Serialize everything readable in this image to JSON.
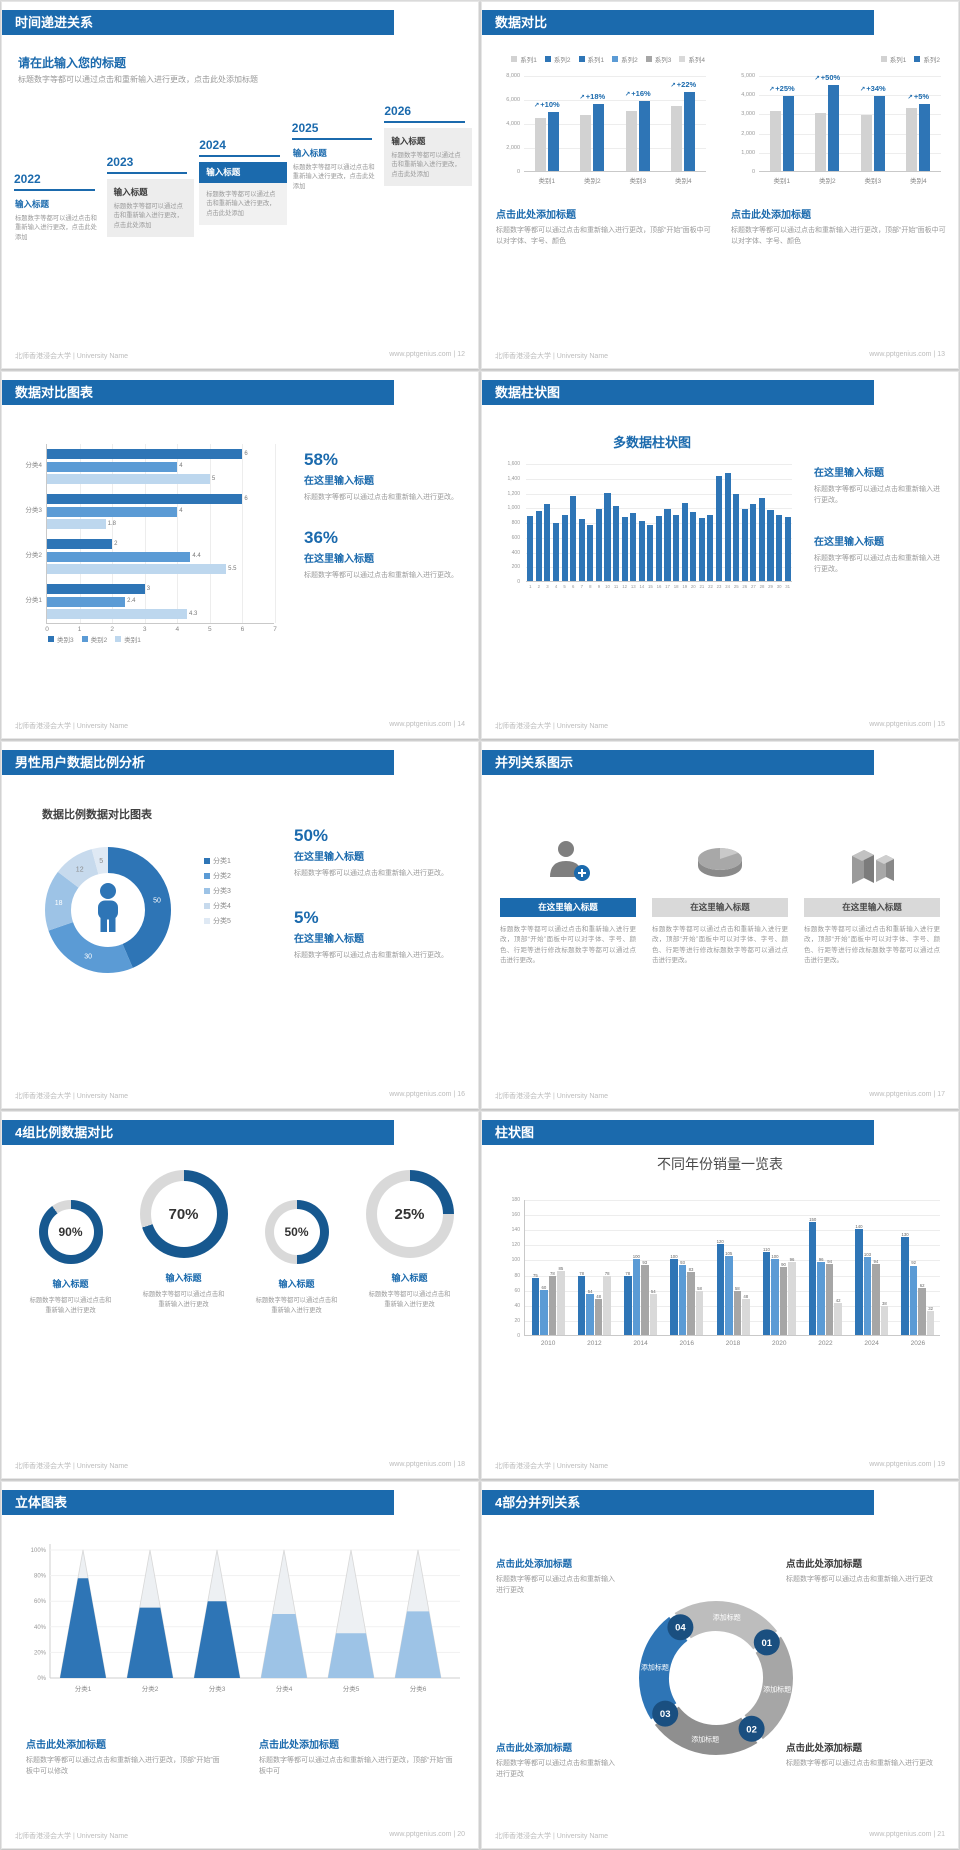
{
  "footer_left": "北师香港浸会大学 | University Name",
  "slides": {
    "s1": {
      "header": "时间递进关系",
      "footer_right": "www.pptgenius.com | 12",
      "subtitle": "请在此输入您的标题",
      "intro": "标题数字等都可以通过点击和重新输入进行更改，点击此处添加标题",
      "item_title": "输入标题",
      "item_body": "标题数字等都可以通过点击和重新输入进行更改，点击此处添加",
      "years": [
        "2022",
        "2023",
        "2024",
        "2025",
        "2026"
      ],
      "styles": [
        "plain",
        "gray",
        "blue",
        "plain",
        "gray"
      ]
    },
    "s2": {
      "header": "数据对比",
      "footer_right": "www.pptgenius.com | 13",
      "caption_title": "点击此处添加标题",
      "caption_body": "标题数字等都可以通过点击和重新输入进行更改，顶部“开始”面板中可以对字体、字号、颜色"
    },
    "s3": {
      "header": "数据对比图表",
      "footer_right": "www.pptgenius.com | 14",
      "stats": [
        {
          "pct": "58%",
          "title": "在这里输入标题",
          "body": "标题数字等都可以通过点击和重新输入进行更改。"
        },
        {
          "pct": "36%",
          "title": "在这里输入标题",
          "body": "标题数字等都可以通过点击和重新输入进行更改。"
        }
      ]
    },
    "s4": {
      "header": "数据柱状图",
      "footer_right": "www.pptgenius.com | 15",
      "stats": [
        {
          "title": "在这里输入标题",
          "body": "标题数字等都可以通过点击和重新输入进行更改。"
        },
        {
          "title": "在这里输入标题",
          "body": "标题数字等都可以通过点击和重新输入进行更改。"
        }
      ]
    },
    "s5": {
      "header": "男性用户数据比例分析",
      "footer_right": "www.pptgenius.com | 16",
      "title": "数据比例数据对比图表",
      "stats": [
        {
          "pct": "50%",
          "title": "在这里输入标题",
          "body": "标题数字等都可以通过点击和重新输入进行更改。"
        },
        {
          "pct": "5%",
          "title": "在这里输入标题",
          "body": "标题数字等都可以通过点击和重新输入进行更改。"
        }
      ]
    },
    "s6": {
      "header": "并列关系图示",
      "footer_right": "www.pptgenius.com | 17",
      "col_title": "在这里输入标题",
      "body": "标题数字等都可以通过点击和重新输入进行更改，顶部“开始”面板中可以对字体、字号、颜色、行距等进行修改标题数字等都可以通过点击进行更改。"
    },
    "s7": {
      "header": "4组比例数据对比",
      "footer_right": "www.pptgenius.com | 18",
      "item_title": "输入标题",
      "labels": [
        "90%",
        "70%",
        "50%",
        "25%"
      ],
      "body": "标题数字等都可以通过点击和重新输入进行更改"
    },
    "s8": {
      "header": "柱状图",
      "footer_right": "www.pptgenius.com | 19"
    },
    "s9": {
      "header": "立体图表",
      "footer_right": "www.pptgenius.com | 20",
      "captions": [
        {
          "title": "点击此处添加标题",
          "body": "标题数字等都可以通过点击和重新输入进行更改，顶部“开始”面板中可以修改"
        },
        {
          "title": "点击此处添加标题",
          "body": "标题数字等都可以通过点击和重新输入进行更改，顶部“开始”面板中可"
        }
      ]
    },
    "s10": {
      "header": "4部分并列关系",
      "footer_right": "www.pptgenius.com | 21",
      "ring_label": "添加标题",
      "numbers": [
        "01",
        "02",
        "03",
        "04"
      ],
      "blocks": [
        {
          "title": "点击此处添加标题",
          "body": "标题数字等都可以通过点击和重新输入进行更改"
        },
        {
          "title": "点击此处添加标题",
          "body": "标题数字等都可以通过点击和重新输入进行更改"
        },
        {
          "title": "点击此处添加标题",
          "body": "标题数字等都可以通过点击和重新输入进行更改"
        },
        {
          "title": "点击此处添加标题",
          "body": "标题数字等都可以通过点击和重新输入进行更改"
        }
      ]
    }
  },
  "chart_data": [
    {
      "id": "compare-left",
      "type": "bar",
      "categories": [
        "类别1",
        "类别2",
        "类别3",
        "类别4"
      ],
      "series": [
        {
          "name": "系列1",
          "color": "#d2d2d2",
          "values": [
            4400,
            4700,
            5000,
            5400
          ]
        },
        {
          "name": "系列2",
          "color": "#2e75b6",
          "values": [
            4900,
            5600,
            5800,
            6600
          ]
        }
      ],
      "annotations": [
        "+10%",
        "+18%",
        "+16%",
        "+22%"
      ],
      "ylim": [
        0,
        8000
      ],
      "yticks": [
        "8,000",
        "6,000",
        "4,000",
        "2,000",
        "0"
      ]
    },
    {
      "id": "compare-right",
      "type": "bar",
      "categories": [
        "类别1",
        "类别2",
        "类别3",
        "类别4"
      ],
      "series": [
        {
          "name": "系列1",
          "color": "#d2d2d2",
          "values": [
            3100,
            3000,
            2900,
            3300
          ]
        },
        {
          "name": "系列2",
          "color": "#2e75b6",
          "values": [
            3900,
            4500,
            3900,
            3500
          ]
        }
      ],
      "annotations": [
        "+25%",
        "+50%",
        "+34%",
        "+5%"
      ],
      "ylim": [
        0,
        5000
      ],
      "yticks": [
        "5,000",
        "4,000",
        "3,000",
        "2,000",
        "1,000",
        "0"
      ]
    },
    {
      "id": "category-hbar",
      "type": "bar",
      "orientation": "horizontal",
      "categories": [
        "分类4",
        "分类3",
        "分类2",
        "分类1"
      ],
      "series": [
        {
          "name": "类别3",
          "color": "#2e75b6",
          "values": [
            6,
            6,
            2,
            3
          ]
        },
        {
          "name": "类别2",
          "color": "#5b9bd5",
          "values": [
            4,
            4,
            4.4,
            2.4
          ]
        },
        {
          "name": "类别1",
          "color": "#bdd7ee",
          "values": [
            5,
            1.8,
            5.5,
            4.3
          ]
        }
      ],
      "xlim": [
        0,
        7
      ],
      "xticks": [
        0,
        1,
        2,
        3,
        4,
        5,
        6,
        7
      ]
    },
    {
      "id": "daily-bars",
      "type": "bar",
      "title": "多数据柱状图",
      "color": "#2e75b6",
      "values": [
        880,
        950,
        1050,
        780,
        900,
        1150,
        840,
        760,
        980,
        1200,
        1020,
        870,
        920,
        820,
        760,
        880,
        980,
        900,
        1060,
        940,
        860,
        900,
        1430,
        1460,
        1180,
        980,
        1040,
        1120,
        960,
        900,
        870
      ],
      "ylim": [
        0,
        1600
      ],
      "yticks": [
        "1,600",
        "1,400",
        "1,200",
        "1,000",
        "800",
        "600",
        "400",
        "200",
        "0"
      ]
    },
    {
      "id": "gender-donut",
      "type": "pie",
      "labels": [
        "分类1",
        "分类2",
        "分类3",
        "分类4",
        "分类5"
      ],
      "values": [
        50,
        30,
        18,
        12,
        5
      ],
      "colors": [
        "#2e75b6",
        "#5b9bd5",
        "#9dc3e6",
        "#c7daed",
        "#dfe9f4"
      ]
    },
    {
      "id": "progress-rings",
      "type": "donut-progress",
      "values": [
        90,
        70,
        50,
        25
      ],
      "color": "#17588f",
      "track": "#d9d9d9"
    },
    {
      "id": "year-sales",
      "type": "bar",
      "title": "不同年份销量一览表",
      "categories": [
        "2010",
        "2012",
        "2014",
        "2016",
        "2018",
        "2020",
        "2022",
        "2024",
        "2026"
      ],
      "series": [
        {
          "name": "系列1",
          "color": "#2e75b6",
          "values": [
            75,
            78,
            78,
            100,
            120,
            110,
            150,
            140,
            130
          ]
        },
        {
          "name": "系列2",
          "color": "#5b9bd5",
          "values": [
            60,
            54,
            100,
            93,
            105,
            100,
            96,
            103,
            92
          ]
        },
        {
          "name": "系列3",
          "color": "#a6a6a6",
          "values": [
            78,
            48,
            93,
            83,
            58,
            90,
            94,
            94,
            62
          ]
        },
        {
          "name": "系列4",
          "color": "#d9d9d9",
          "values": [
            85,
            78,
            54,
            58,
            48,
            96,
            42,
            38,
            32
          ]
        }
      ],
      "ylim": [
        0,
        180
      ],
      "yticks": [
        180,
        160,
        140,
        120,
        100,
        80,
        60,
        40,
        20,
        0
      ]
    },
    {
      "id": "cone-chart",
      "type": "cone",
      "categories": [
        "分类1",
        "分类2",
        "分类3",
        "分类4",
        "分类5",
        "分类6"
      ],
      "values": [
        78,
        55,
        60,
        50,
        35,
        52
      ],
      "colors": [
        "#2e75b6",
        "#2e75b6",
        "#2e75b6",
        "#9dc3e6",
        "#9dc3e6",
        "#9dc3e6"
      ],
      "yticks": [
        "100%",
        "80%",
        "60%",
        "40%",
        "20%",
        "0%"
      ],
      "ylim": [
        0,
        100
      ]
    }
  ]
}
